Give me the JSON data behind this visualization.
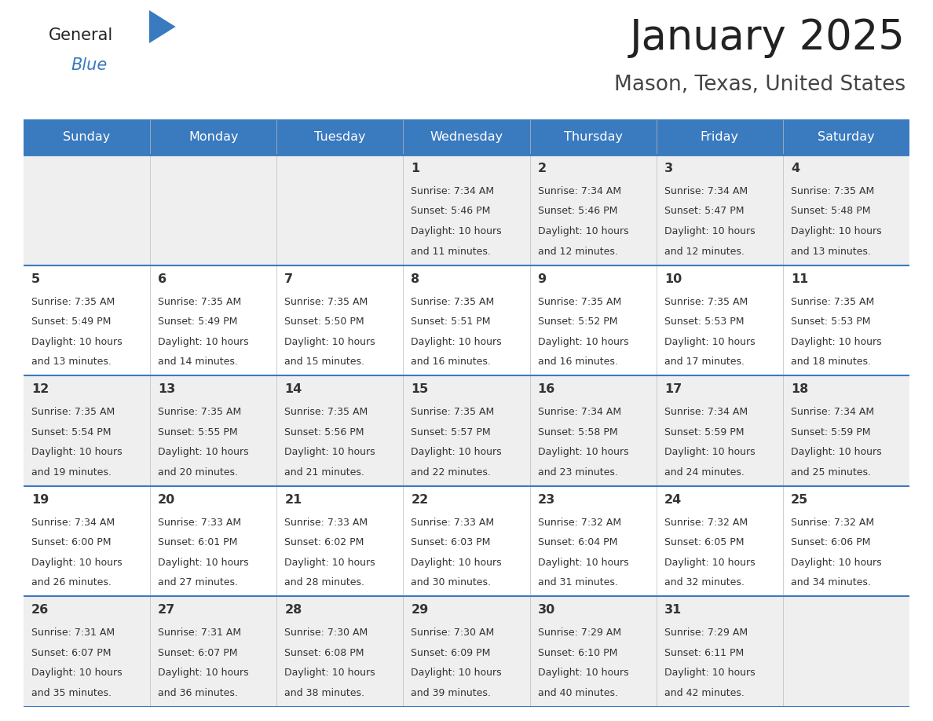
{
  "title": "January 2025",
  "subtitle": "Mason, Texas, United States",
  "header_bg": "#3a7abf",
  "header_text": "#ffffff",
  "days_of_week": [
    "Sunday",
    "Monday",
    "Tuesday",
    "Wednesday",
    "Thursday",
    "Friday",
    "Saturday"
  ],
  "row_bg_odd": "#efefef",
  "row_bg_even": "#ffffff",
  "separator_color": "#3a7abf",
  "text_color": "#333333",
  "calendar_data": [
    [
      {
        "day": null,
        "sunrise": null,
        "sunset": null,
        "daylight": null
      },
      {
        "day": null,
        "sunrise": null,
        "sunset": null,
        "daylight": null
      },
      {
        "day": null,
        "sunrise": null,
        "sunset": null,
        "daylight": null
      },
      {
        "day": "1",
        "sunrise": "7:34 AM",
        "sunset": "5:46 PM",
        "daylight": "10 hours and 11 minutes."
      },
      {
        "day": "2",
        "sunrise": "7:34 AM",
        "sunset": "5:46 PM",
        "daylight": "10 hours and 12 minutes."
      },
      {
        "day": "3",
        "sunrise": "7:34 AM",
        "sunset": "5:47 PM",
        "daylight": "10 hours and 12 minutes."
      },
      {
        "day": "4",
        "sunrise": "7:35 AM",
        "sunset": "5:48 PM",
        "daylight": "10 hours and 13 minutes."
      }
    ],
    [
      {
        "day": "5",
        "sunrise": "7:35 AM",
        "sunset": "5:49 PM",
        "daylight": "10 hours and 13 minutes."
      },
      {
        "day": "6",
        "sunrise": "7:35 AM",
        "sunset": "5:49 PM",
        "daylight": "10 hours and 14 minutes."
      },
      {
        "day": "7",
        "sunrise": "7:35 AM",
        "sunset": "5:50 PM",
        "daylight": "10 hours and 15 minutes."
      },
      {
        "day": "8",
        "sunrise": "7:35 AM",
        "sunset": "5:51 PM",
        "daylight": "10 hours and 16 minutes."
      },
      {
        "day": "9",
        "sunrise": "7:35 AM",
        "sunset": "5:52 PM",
        "daylight": "10 hours and 16 minutes."
      },
      {
        "day": "10",
        "sunrise": "7:35 AM",
        "sunset": "5:53 PM",
        "daylight": "10 hours and 17 minutes."
      },
      {
        "day": "11",
        "sunrise": "7:35 AM",
        "sunset": "5:53 PM",
        "daylight": "10 hours and 18 minutes."
      }
    ],
    [
      {
        "day": "12",
        "sunrise": "7:35 AM",
        "sunset": "5:54 PM",
        "daylight": "10 hours and 19 minutes."
      },
      {
        "day": "13",
        "sunrise": "7:35 AM",
        "sunset": "5:55 PM",
        "daylight": "10 hours and 20 minutes."
      },
      {
        "day": "14",
        "sunrise": "7:35 AM",
        "sunset": "5:56 PM",
        "daylight": "10 hours and 21 minutes."
      },
      {
        "day": "15",
        "sunrise": "7:35 AM",
        "sunset": "5:57 PM",
        "daylight": "10 hours and 22 minutes."
      },
      {
        "day": "16",
        "sunrise": "7:34 AM",
        "sunset": "5:58 PM",
        "daylight": "10 hours and 23 minutes."
      },
      {
        "day": "17",
        "sunrise": "7:34 AM",
        "sunset": "5:59 PM",
        "daylight": "10 hours and 24 minutes."
      },
      {
        "day": "18",
        "sunrise": "7:34 AM",
        "sunset": "5:59 PM",
        "daylight": "10 hours and 25 minutes."
      }
    ],
    [
      {
        "day": "19",
        "sunrise": "7:34 AM",
        "sunset": "6:00 PM",
        "daylight": "10 hours and 26 minutes."
      },
      {
        "day": "20",
        "sunrise": "7:33 AM",
        "sunset": "6:01 PM",
        "daylight": "10 hours and 27 minutes."
      },
      {
        "day": "21",
        "sunrise": "7:33 AM",
        "sunset": "6:02 PM",
        "daylight": "10 hours and 28 minutes."
      },
      {
        "day": "22",
        "sunrise": "7:33 AM",
        "sunset": "6:03 PM",
        "daylight": "10 hours and 30 minutes."
      },
      {
        "day": "23",
        "sunrise": "7:32 AM",
        "sunset": "6:04 PM",
        "daylight": "10 hours and 31 minutes."
      },
      {
        "day": "24",
        "sunrise": "7:32 AM",
        "sunset": "6:05 PM",
        "daylight": "10 hours and 32 minutes."
      },
      {
        "day": "25",
        "sunrise": "7:32 AM",
        "sunset": "6:06 PM",
        "daylight": "10 hours and 34 minutes."
      }
    ],
    [
      {
        "day": "26",
        "sunrise": "7:31 AM",
        "sunset": "6:07 PM",
        "daylight": "10 hours and 35 minutes."
      },
      {
        "day": "27",
        "sunrise": "7:31 AM",
        "sunset": "6:07 PM",
        "daylight": "10 hours and 36 minutes."
      },
      {
        "day": "28",
        "sunrise": "7:30 AM",
        "sunset": "6:08 PM",
        "daylight": "10 hours and 38 minutes."
      },
      {
        "day": "29",
        "sunrise": "7:30 AM",
        "sunset": "6:09 PM",
        "daylight": "10 hours and 39 minutes."
      },
      {
        "day": "30",
        "sunrise": "7:29 AM",
        "sunset": "6:10 PM",
        "daylight": "10 hours and 40 minutes."
      },
      {
        "day": "31",
        "sunrise": "7:29 AM",
        "sunset": "6:11 PM",
        "daylight": "10 hours and 42 minutes."
      },
      {
        "day": null,
        "sunrise": null,
        "sunset": null,
        "daylight": null
      }
    ]
  ]
}
